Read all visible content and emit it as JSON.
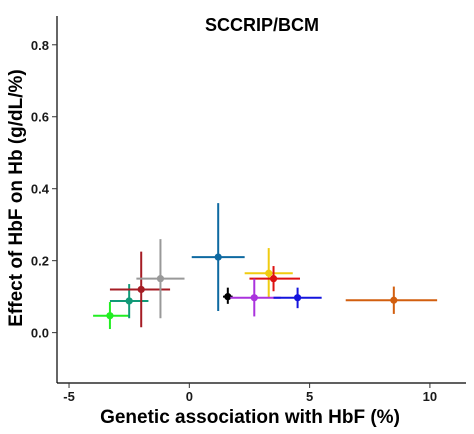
{
  "chart_data": {
    "type": "scatter",
    "title": "SCCRIP/BCM",
    "xlabel": "Genetic association with HbF (%)",
    "ylabel": "Effect of HbF on Hb (g/dL/%)",
    "xlim": [
      -5.5,
      11.5
    ],
    "ylim": [
      -0.14,
      0.88
    ],
    "x_ticks": [
      -5,
      0,
      5,
      10
    ],
    "y_ticks": [
      0.0,
      0.2,
      0.4,
      0.6,
      0.8
    ],
    "x_tick_labels": [
      "-5",
      "0",
      "5",
      "10"
    ],
    "y_tick_labels": [
      "0.0",
      "0.2",
      "0.4",
      "0.6",
      "0.8"
    ],
    "grid": false,
    "legend": "none",
    "points": [
      {
        "x": -3.3,
        "y": 0.047,
        "xerr_low": -4.0,
        "xerr_high": -2.5,
        "yerr_low": 0.01,
        "yerr_high": 0.085,
        "color": "#22ee22"
      },
      {
        "x": -2.5,
        "y": 0.088,
        "xerr_low": -3.3,
        "xerr_high": -1.7,
        "yerr_low": 0.04,
        "yerr_high": 0.135,
        "color": "#119977"
      },
      {
        "x": -2.0,
        "y": 0.12,
        "xerr_low": -3.3,
        "xerr_high": -0.8,
        "yerr_low": 0.015,
        "yerr_high": 0.225,
        "color": "#a51c24"
      },
      {
        "x": -1.2,
        "y": 0.15,
        "xerr_low": -2.2,
        "xerr_high": -0.2,
        "yerr_low": 0.04,
        "yerr_high": 0.26,
        "color": "#999999"
      },
      {
        "x": 1.2,
        "y": 0.21,
        "xerr_low": 0.1,
        "xerr_high": 2.3,
        "yerr_low": 0.06,
        "yerr_high": 0.36,
        "color": "#0e69a1"
      },
      {
        "x": 1.6,
        "y": 0.1,
        "xerr_low": 1.4,
        "xerr_high": 1.8,
        "yerr_low": 0.08,
        "yerr_high": 0.125,
        "color": "#000000"
      },
      {
        "x": 3.3,
        "y": 0.165,
        "xerr_low": 2.3,
        "xerr_high": 4.3,
        "yerr_low": 0.095,
        "yerr_high": 0.235,
        "color": "#f0cc10"
      },
      {
        "x": 3.5,
        "y": 0.15,
        "xerr_low": 2.5,
        "xerr_high": 4.6,
        "yerr_low": 0.115,
        "yerr_high": 0.185,
        "color": "#dd1111"
      },
      {
        "x": 2.7,
        "y": 0.097,
        "xerr_low": 1.7,
        "xerr_high": 3.8,
        "yerr_low": 0.045,
        "yerr_high": 0.15,
        "color": "#aa33dd"
      },
      {
        "x": 4.5,
        "y": 0.097,
        "xerr_low": 3.5,
        "xerr_high": 5.5,
        "yerr_low": 0.068,
        "yerr_high": 0.125,
        "color": "#1414dd"
      },
      {
        "x": 8.5,
        "y": 0.09,
        "xerr_low": 6.5,
        "xerr_high": 10.3,
        "yerr_low": 0.052,
        "yerr_high": 0.128,
        "color": "#d25f0f"
      }
    ]
  }
}
